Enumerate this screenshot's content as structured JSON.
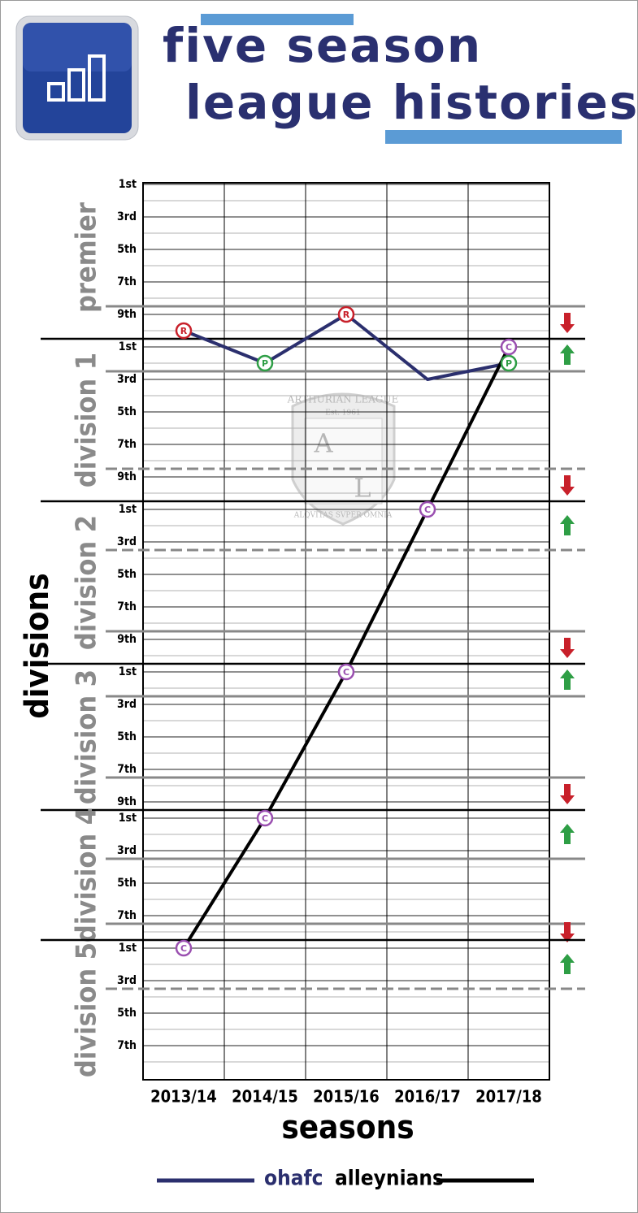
{
  "chart_data": {
    "type": "line",
    "title_lines": [
      "five season",
      "league histories"
    ],
    "x_label": "seasons",
    "y_label": "divisions",
    "categories": [
      "2013/14",
      "2014/15",
      "2015/16",
      "2016/17",
      "2017/18"
    ],
    "ylim": [
      0.9,
      56.1
    ],
    "inverted": true,
    "yticks": [
      {
        "value": 1,
        "label": "1st"
      },
      {
        "value": 3,
        "label": "3rd"
      },
      {
        "value": 5,
        "label": "5th"
      },
      {
        "value": 7,
        "label": "7th"
      },
      {
        "value": 9,
        "label": "9th"
      },
      {
        "value": 11,
        "label": "1st"
      },
      {
        "value": 13,
        "label": "3rd"
      },
      {
        "value": 15,
        "label": "5th"
      },
      {
        "value": 17,
        "label": "7th"
      },
      {
        "value": 19,
        "label": "9th"
      },
      {
        "value": 21,
        "label": "1st"
      },
      {
        "value": 23,
        "label": "3rd"
      },
      {
        "value": 25,
        "label": "5th"
      },
      {
        "value": 27,
        "label": "7th"
      },
      {
        "value": 29,
        "label": "9th"
      },
      {
        "value": 31,
        "label": "1st"
      },
      {
        "value": 33,
        "label": "3rd"
      },
      {
        "value": 35,
        "label": "5th"
      },
      {
        "value": 37,
        "label": "7th"
      },
      {
        "value": 39,
        "label": "9th"
      },
      {
        "value": 40,
        "label": "1st"
      },
      {
        "value": 42,
        "label": "3rd"
      },
      {
        "value": 44,
        "label": "5th"
      },
      {
        "value": 46,
        "label": "7th"
      },
      {
        "value": 48,
        "label": "1st"
      },
      {
        "value": 50,
        "label": "3rd"
      },
      {
        "value": 52,
        "label": "5th"
      },
      {
        "value": 54,
        "label": "7th"
      }
    ],
    "minor_yticks": [
      2,
      4,
      6,
      8,
      10,
      12,
      14,
      16,
      18,
      20,
      22,
      24,
      26,
      28,
      30,
      32,
      34,
      36,
      38,
      41,
      43,
      45,
      47,
      49,
      51,
      53,
      55
    ],
    "divisions": [
      {
        "name": "premier",
        "first": 1,
        "last": 10,
        "promotion": null,
        "relegation": {
          "line": 8.5,
          "dashed": false
        }
      },
      {
        "name": "division 1",
        "first": 11,
        "last": 20,
        "promotion": {
          "line": 12.5,
          "dashed": false
        },
        "relegation": {
          "line": 18.5,
          "dashed": true
        }
      },
      {
        "name": "division 2",
        "first": 21,
        "last": 30,
        "promotion": {
          "line": 23.5,
          "dashed": true
        },
        "relegation": {
          "line": 28.5,
          "dashed": false
        }
      },
      {
        "name": "division 3",
        "first": 31,
        "last": 39,
        "promotion": {
          "line": 32.5,
          "dashed": false
        },
        "relegation": {
          "line": 37.5,
          "dashed": false
        }
      },
      {
        "name": "division 4",
        "first": 40,
        "last": 47,
        "promotion": {
          "line": 42.5,
          "dashed": false
        },
        "relegation": {
          "line": 46.5,
          "dashed": false
        }
      },
      {
        "name": "division 5",
        "first": 48,
        "last": 56,
        "promotion": {
          "line": 50.5,
          "dashed": true
        },
        "relegation": null
      }
    ],
    "marker_colors": {
      "R": "#c8202a",
      "P": "#2e9e45",
      "C": "#9a4fb0"
    },
    "series": [
      {
        "name": "ohafc",
        "color": "#2b2f6e",
        "values": [
          10,
          12,
          9,
          13,
          12
        ],
        "markers": [
          "R",
          "P",
          "R",
          null,
          "P"
        ]
      },
      {
        "name": "alleynians",
        "color": "#000000",
        "values": [
          48,
          40,
          31,
          21,
          11
        ],
        "markers": [
          "C",
          "C",
          "C",
          "C",
          "C"
        ]
      }
    ]
  },
  "watermark": {
    "top": "ARTHURIAN LEAGUE",
    "est": "Est. 1961",
    "left": "A",
    "right": "L",
    "motto": "ALQVITAS SVPER OMNIA"
  }
}
